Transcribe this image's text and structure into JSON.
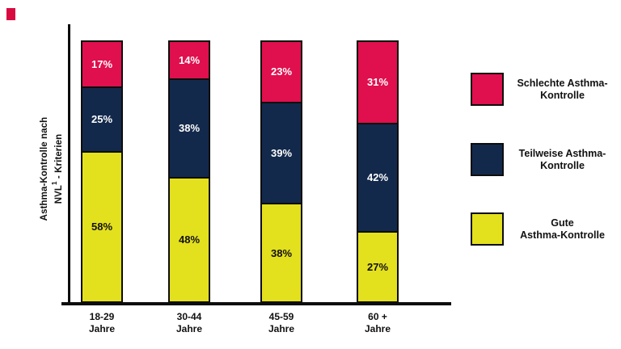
{
  "page": {
    "background": "#ffffff",
    "corner_mark_color": "#d80b40"
  },
  "chart_data": {
    "type": "bar",
    "subtype": "stacked-100-percent",
    "title": "",
    "ylabel": {
      "line1": "Asthma-Kontrolle nach",
      "line2_pre": "NVL",
      "line2_sup": "1",
      "line2_post": " - Kriterien"
    },
    "xlabel": "",
    "ylim": [
      0,
      100
    ],
    "grid": false,
    "legend_position": "right",
    "axis_color": "#0d0d0d",
    "categories": [
      {
        "line1": "18-29",
        "line2": "Jahre"
      },
      {
        "line1": "30-44",
        "line2": "Jahre"
      },
      {
        "line1": "45-59",
        "line2": "Jahre"
      },
      {
        "line1": "60 +",
        "line2": "Jahre"
      }
    ],
    "series": [
      {
        "key": "schlechte",
        "label_lines": [
          "Schlechte Asthma-",
          "Kontrolle"
        ],
        "color": "#e00f4d",
        "text_color": "#ffffff",
        "values": [
          17,
          14,
          23,
          31
        ]
      },
      {
        "key": "teilweise",
        "label_lines": [
          "Teilweise Asthma-",
          "Kontrolle"
        ],
        "color": "#13294b",
        "text_color": "#ffffff",
        "values": [
          25,
          38,
          39,
          42
        ]
      },
      {
        "key": "gute",
        "label_lines": [
          "Gute",
          "Asthma-Kontrolle"
        ],
        "color": "#e3e01e",
        "text_color": "#111111",
        "values": [
          58,
          48,
          38,
          27
        ]
      }
    ],
    "value_suffix": "%"
  }
}
